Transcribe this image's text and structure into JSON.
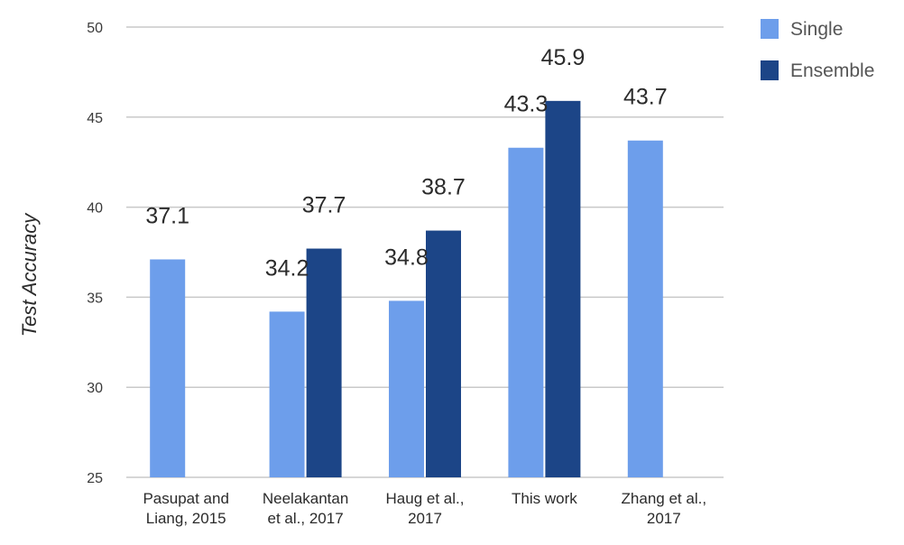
{
  "chart_data": {
    "type": "bar",
    "title": "",
    "xlabel": "",
    "ylabel": "Test Accuracy",
    "ylim": [
      25,
      50
    ],
    "yticks": [
      25,
      30,
      35,
      40,
      45,
      50
    ],
    "grid": true,
    "legend_position": "top-right",
    "categories": [
      [
        "Pasupat and",
        "Liang, 2015"
      ],
      [
        "Neelakantan",
        "et al., 2017"
      ],
      [
        "Haug et al.,",
        "2017"
      ],
      [
        "This work"
      ],
      [
        "Zhang et al.,",
        "2017"
      ]
    ],
    "series": [
      {
        "name": "Single",
        "color": "#6d9eeb",
        "values": [
          37.1,
          34.2,
          34.8,
          43.3,
          43.7
        ],
        "labels": [
          "37.1",
          "34.2",
          "34.8",
          "43.3",
          "43.7"
        ]
      },
      {
        "name": "Ensemble",
        "color": "#1c4587",
        "values": [
          null,
          37.7,
          38.7,
          45.9,
          null
        ],
        "labels": [
          "",
          "37.7",
          "38.7",
          "45.9",
          ""
        ]
      }
    ]
  }
}
